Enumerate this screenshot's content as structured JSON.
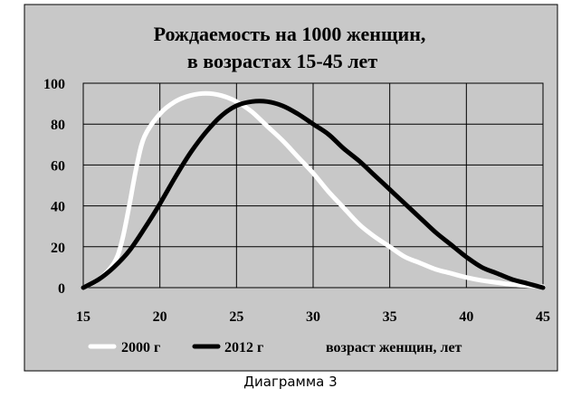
{
  "chart_data": {
    "type": "line",
    "title_line1": "Рождаемость на 1000 женщин,",
    "title_line2": "в возрастах 15-45 лет",
    "xlabel": "возраст женщин, лет",
    "ylabel": "",
    "xlim": [
      15,
      45
    ],
    "ylim": [
      0,
      100
    ],
    "x_ticks": [
      15,
      20,
      25,
      30,
      35,
      40,
      45
    ],
    "y_ticks": [
      0,
      20,
      40,
      60,
      80,
      100
    ],
    "grid": true,
    "legend_position": "bottom",
    "series": [
      {
        "name": "2000 г",
        "color": "#ffffff",
        "x": [
          15,
          16,
          17,
          17.5,
          18,
          18.5,
          19,
          20,
          21,
          22,
          23,
          24,
          25,
          26,
          27,
          28,
          29,
          30,
          31,
          32,
          33,
          34,
          35,
          36,
          37,
          38,
          39,
          40,
          41,
          42,
          43,
          44,
          45
        ],
        "values": [
          0,
          4,
          12,
          22,
          40,
          60,
          74,
          85,
          91,
          94,
          95,
          94,
          91,
          86,
          79,
          72,
          64,
          56,
          47,
          39,
          31,
          25,
          20,
          15,
          12,
          9,
          7,
          5,
          3.5,
          2.5,
          1.5,
          1,
          0.5
        ]
      },
      {
        "name": "2012 г",
        "color": "#000000",
        "x": [
          15,
          16,
          17,
          18,
          19,
          20,
          21,
          22,
          23,
          24,
          25,
          26,
          27,
          28,
          29,
          30,
          31,
          32,
          33,
          34,
          35,
          36,
          37,
          38,
          39,
          40,
          41,
          42,
          43,
          44,
          45
        ],
        "values": [
          0,
          4,
          10,
          18,
          29,
          41,
          54,
          66,
          76,
          84,
          89,
          91,
          91,
          89,
          85,
          80,
          75,
          68,
          62,
          55,
          48,
          41,
          34,
          27,
          21,
          15,
          10,
          7,
          4,
          2,
          0
        ]
      }
    ]
  },
  "caption": "Диаграмма 3"
}
